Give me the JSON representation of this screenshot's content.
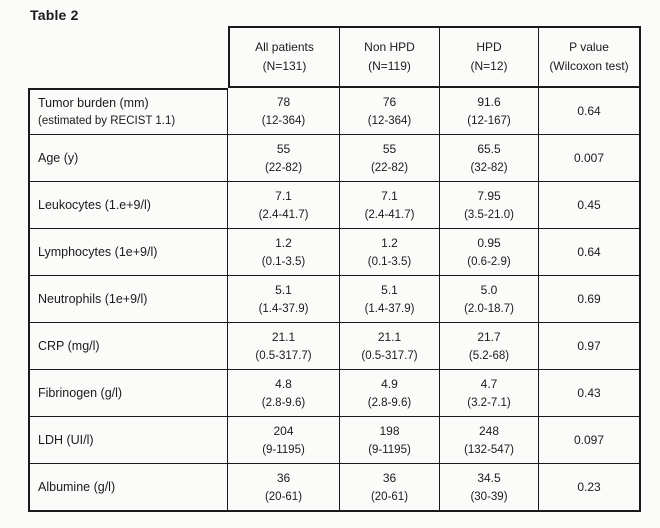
{
  "title": "Table 2",
  "colors": {
    "background": "#fbfbfa",
    "text": "#1b1b1b",
    "border": "#1a1a1a"
  },
  "table": {
    "columns": [
      {
        "line1": "All patients",
        "line2": "(N=131)"
      },
      {
        "line1": "Non HPD",
        "line2": "(N=119)"
      },
      {
        "line1": "HPD",
        "line2": "(N=12)"
      },
      {
        "line1": "P value",
        "line2": "(Wilcoxon test)"
      }
    ],
    "rows": [
      {
        "label1": "Tumor burden (mm)",
        "label2": "(estimated by RECIST 1.1)",
        "cells": [
          {
            "median": "78",
            "range": "(12-364)"
          },
          {
            "median": "76",
            "range": "(12-364)"
          },
          {
            "median": "91.6",
            "range": "(12-167)"
          }
        ],
        "p": "0.64"
      },
      {
        "label1": "Age (y)",
        "label2": "",
        "cells": [
          {
            "median": "55",
            "range": "(22-82)"
          },
          {
            "median": "55",
            "range": "(22-82)"
          },
          {
            "median": "65.5",
            "range": "(32-82)"
          }
        ],
        "p": "0.007"
      },
      {
        "label1": "Leukocytes (1.e+9/l)",
        "label2": "",
        "cells": [
          {
            "median": "7.1",
            "range": "(2.4-41.7)"
          },
          {
            "median": "7.1",
            "range": "(2.4-41.7)"
          },
          {
            "median": "7.95",
            "range": "(3.5-21.0)"
          }
        ],
        "p": "0.45"
      },
      {
        "label1": "Lymphocytes (1e+9/l)",
        "label2": "",
        "cells": [
          {
            "median": "1.2",
            "range": "(0.1-3.5)"
          },
          {
            "median": "1.2",
            "range": "(0.1-3.5)"
          },
          {
            "median": "0.95",
            "range": "(0.6-2.9)"
          }
        ],
        "p": "0.64"
      },
      {
        "label1": "Neutrophils (1e+9/l)",
        "label2": "",
        "cells": [
          {
            "median": "5.1",
            "range": "(1.4-37.9)"
          },
          {
            "median": "5.1",
            "range": "(1.4-37.9)"
          },
          {
            "median": "5.0",
            "range": "(2.0-18.7)"
          }
        ],
        "p": "0.69"
      },
      {
        "label1": "CRP (mg/l)",
        "label2": "",
        "cells": [
          {
            "median": "21.1",
            "range": "(0.5-317.7)"
          },
          {
            "median": "21.1",
            "range": "(0.5-317.7)"
          },
          {
            "median": "21.7",
            "range": "(5.2-68)"
          }
        ],
        "p": "0.97"
      },
      {
        "label1": "Fibrinogen (g/l)",
        "label2": "",
        "cells": [
          {
            "median": "4.8",
            "range": "(2.8-9.6)"
          },
          {
            "median": "4.9",
            "range": "(2.8-9.6)"
          },
          {
            "median": "4.7",
            "range": "(3.2-7.1)"
          }
        ],
        "p": "0.43"
      },
      {
        "label1": "LDH (UI/l)",
        "label2": "",
        "cells": [
          {
            "median": "204",
            "range": "(9-1195)"
          },
          {
            "median": "198",
            "range": "(9-1195)"
          },
          {
            "median": "248",
            "range": "(132-547)"
          }
        ],
        "p": "0.097"
      },
      {
        "label1": "Albumine (g/l)",
        "label2": "",
        "cells": [
          {
            "median": "36",
            "range": "(20-61)"
          },
          {
            "median": "36",
            "range": "(20-61)"
          },
          {
            "median": "34.5",
            "range": "(30-39)"
          }
        ],
        "p": "0.23"
      }
    ]
  }
}
